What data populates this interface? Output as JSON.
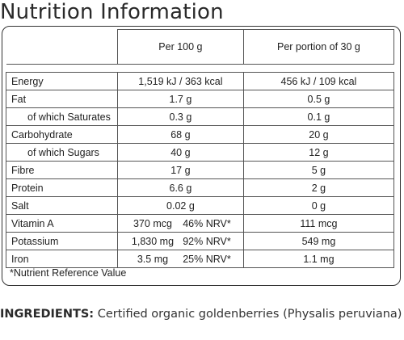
{
  "title": "Nutrition Information",
  "columns": {
    "per_100g": "Per 100 g",
    "per_portion": "Per portion of 30 g"
  },
  "rows": [
    {
      "name": "Energy",
      "per_100g": "1,519 kJ / 363 kcal",
      "per_portion": "456 kJ / 109 kcal"
    },
    {
      "name": "Fat",
      "per_100g": "1.7 g",
      "per_portion": "0.5 g"
    },
    {
      "name": "of which Saturates",
      "per_100g": "0.3 g",
      "per_portion": "0.1 g"
    },
    {
      "name": "Carbohydrate",
      "per_100g": "68 g",
      "per_portion": "20 g"
    },
    {
      "name": "of which Sugars",
      "per_100g": "40 g",
      "per_portion": "12 g"
    },
    {
      "name": "Fibre",
      "per_100g": "17 g",
      "per_portion": "5 g"
    },
    {
      "name": "Protein",
      "per_100g": "6.6 g",
      "per_portion": "2 g"
    },
    {
      "name": "Salt",
      "per_100g": "0.02 g",
      "per_portion": "0 g"
    },
    {
      "name": "Vitamin A",
      "per_100g": "370 mcg",
      "nrv": "46% NRV*",
      "per_portion": "111 mcg"
    },
    {
      "name": "Potassium",
      "per_100g": "1,830 mg",
      "nrv": "92% NRV*",
      "per_portion": "549 mg"
    },
    {
      "name": "Iron",
      "per_100g": "3.5 mg",
      "nrv": "25% NRV*",
      "per_portion": "1.1 mg"
    }
  ],
  "footnote": "*Nutrient Reference Value",
  "ingredients": {
    "label": "INGREDIENTS:",
    "text": "Certified organic goldenberries (Physalis peruviana)"
  }
}
